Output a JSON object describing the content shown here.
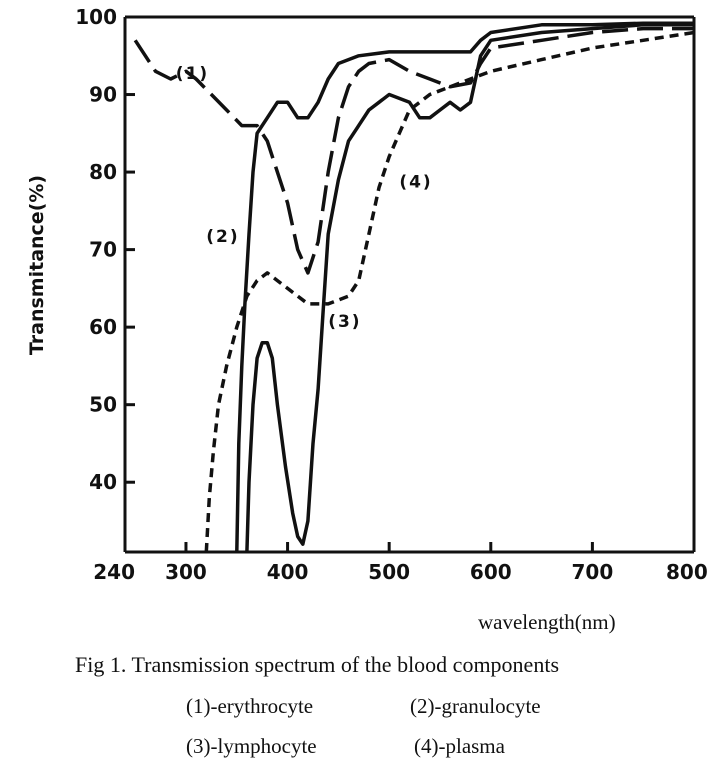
{
  "chart_data": {
    "type": "line",
    "xlabel": "wavelength(nm)",
    "ylabel": "Transmitance(%)",
    "xlim": [
      240,
      800
    ],
    "ylim": [
      31,
      100
    ],
    "x_ticks": [
      {
        "value": 240,
        "label": "240"
      },
      {
        "value": 300,
        "label": "300"
      },
      {
        "value": 400,
        "label": "400"
      },
      {
        "value": 500,
        "label": "500"
      },
      {
        "value": 600,
        "label": "600"
      },
      {
        "value": 700,
        "label": "700"
      },
      {
        "value": 800,
        "label": "800"
      }
    ],
    "y_ticks": [
      {
        "value": 40,
        "label": "40"
      },
      {
        "value": 50,
        "label": "50"
      },
      {
        "value": 60,
        "label": "60"
      },
      {
        "value": 70,
        "label": "70"
      },
      {
        "value": 80,
        "label": "80"
      },
      {
        "value": 90,
        "label": "90"
      },
      {
        "value": 100,
        "label": "100"
      }
    ],
    "series": [
      {
        "name": "(1)",
        "style": "long-dash",
        "label_anchor": [
          290,
          92
        ],
        "points": [
          [
            250,
            97
          ],
          [
            270,
            93
          ],
          [
            285,
            92
          ],
          [
            300,
            93
          ],
          [
            310,
            92
          ],
          [
            325,
            90
          ],
          [
            340,
            88
          ],
          [
            355,
            86
          ],
          [
            370,
            86
          ],
          [
            380,
            84
          ],
          [
            390,
            80
          ],
          [
            400,
            76
          ],
          [
            410,
            70
          ],
          [
            420,
            67
          ],
          [
            430,
            71
          ],
          [
            440,
            80
          ],
          [
            450,
            87
          ],
          [
            460,
            91
          ],
          [
            470,
            93
          ],
          [
            480,
            94
          ],
          [
            500,
            94.5
          ],
          [
            520,
            93
          ],
          [
            540,
            92
          ],
          [
            560,
            91
          ],
          [
            580,
            91.5
          ],
          [
            590,
            94
          ],
          [
            600,
            96
          ],
          [
            650,
            97
          ],
          [
            700,
            98
          ],
          [
            750,
            98.5
          ],
          [
            800,
            98.5
          ]
        ]
      },
      {
        "name": "(2)",
        "style": "solid",
        "label_anchor": [
          320,
          71
        ],
        "points": [
          [
            350,
            31
          ],
          [
            352,
            45
          ],
          [
            355,
            55
          ],
          [
            358,
            63
          ],
          [
            362,
            72
          ],
          [
            366,
            80
          ],
          [
            370,
            85
          ],
          [
            380,
            87
          ],
          [
            390,
            89
          ],
          [
            400,
            89
          ],
          [
            410,
            87
          ],
          [
            420,
            87
          ],
          [
            430,
            89
          ],
          [
            440,
            92
          ],
          [
            450,
            94
          ],
          [
            470,
            95
          ],
          [
            500,
            95.5
          ],
          [
            550,
            95.5
          ],
          [
            580,
            95.5
          ],
          [
            590,
            97
          ],
          [
            600,
            98
          ],
          [
            650,
            99
          ],
          [
            700,
            99
          ],
          [
            750,
            99.2
          ],
          [
            800,
            99.2
          ]
        ]
      },
      {
        "name": "(3)",
        "style": "solid",
        "label_anchor": [
          440,
          60
        ],
        "points": [
          [
            360,
            31
          ],
          [
            362,
            40
          ],
          [
            366,
            50
          ],
          [
            370,
            56
          ],
          [
            375,
            58
          ],
          [
            380,
            58
          ],
          [
            385,
            56
          ],
          [
            390,
            50
          ],
          [
            398,
            42
          ],
          [
            405,
            36
          ],
          [
            410,
            33
          ],
          [
            415,
            32
          ],
          [
            420,
            35
          ],
          [
            425,
            45
          ],
          [
            430,
            52
          ],
          [
            435,
            62
          ],
          [
            440,
            72
          ],
          [
            450,
            79
          ],
          [
            460,
            84
          ],
          [
            470,
            86
          ],
          [
            480,
            88
          ],
          [
            490,
            89
          ],
          [
            500,
            90
          ],
          [
            520,
            89
          ],
          [
            530,
            87
          ],
          [
            540,
            87
          ],
          [
            550,
            88
          ],
          [
            560,
            89
          ],
          [
            570,
            88
          ],
          [
            580,
            89
          ],
          [
            590,
            95
          ],
          [
            600,
            97
          ],
          [
            650,
            98
          ],
          [
            700,
            98.5
          ],
          [
            750,
            99
          ],
          [
            800,
            99
          ]
        ]
      },
      {
        "name": "(4)",
        "style": "short-dash",
        "label_anchor": [
          510,
          78
        ],
        "points": [
          [
            320,
            31
          ],
          [
            323,
            38
          ],
          [
            327,
            44
          ],
          [
            332,
            50
          ],
          [
            340,
            55
          ],
          [
            350,
            60
          ],
          [
            360,
            64
          ],
          [
            370,
            66
          ],
          [
            380,
            67
          ],
          [
            390,
            66
          ],
          [
            400,
            65
          ],
          [
            410,
            64
          ],
          [
            420,
            63
          ],
          [
            430,
            63
          ],
          [
            440,
            63
          ],
          [
            450,
            63.5
          ],
          [
            460,
            64
          ],
          [
            470,
            66
          ],
          [
            480,
            72
          ],
          [
            490,
            78
          ],
          [
            500,
            82
          ],
          [
            510,
            85
          ],
          [
            520,
            88
          ],
          [
            530,
            89
          ],
          [
            540,
            90
          ],
          [
            560,
            91
          ],
          [
            580,
            92
          ],
          [
            600,
            93
          ],
          [
            650,
            94.5
          ],
          [
            700,
            96
          ],
          [
            750,
            97
          ],
          [
            800,
            98
          ]
        ]
      }
    ]
  },
  "caption": {
    "title": "Fig 1. Transmission spectrum of the blood components",
    "legend": [
      {
        "label": "(1)-erythrocyte"
      },
      {
        "label": "(2)-granulocyte"
      },
      {
        "label": "(3)-lymphocyte"
      },
      {
        "label": "(4)-plasma"
      }
    ]
  }
}
